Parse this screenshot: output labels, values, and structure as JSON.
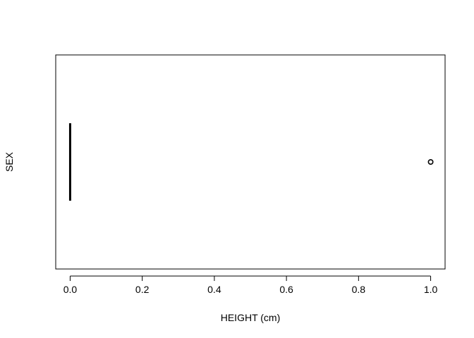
{
  "chart_data": {
    "type": "boxplot",
    "orientation": "horizontal",
    "title": "",
    "xlabel": "HEIGHT (cm)",
    "ylabel": "SEX",
    "xlim": [
      -0.04,
      1.04
    ],
    "x_ticks": [
      0.0,
      0.2,
      0.4,
      0.6,
      0.8,
      1.0
    ],
    "x_tick_labels": [
      "0.0",
      "0.2",
      "0.4",
      "0.6",
      "0.8",
      "1.0"
    ],
    "grid": false,
    "legend": "none",
    "box": {
      "min": 0.0,
      "q1": 0.0,
      "median": 0.0,
      "q3": 0.0,
      "max": 0.0
    },
    "outliers": [
      1.0
    ],
    "colors": {
      "background": "#ffffff",
      "frame": "#000000",
      "box": "#000000",
      "outlier": "#000000"
    }
  }
}
